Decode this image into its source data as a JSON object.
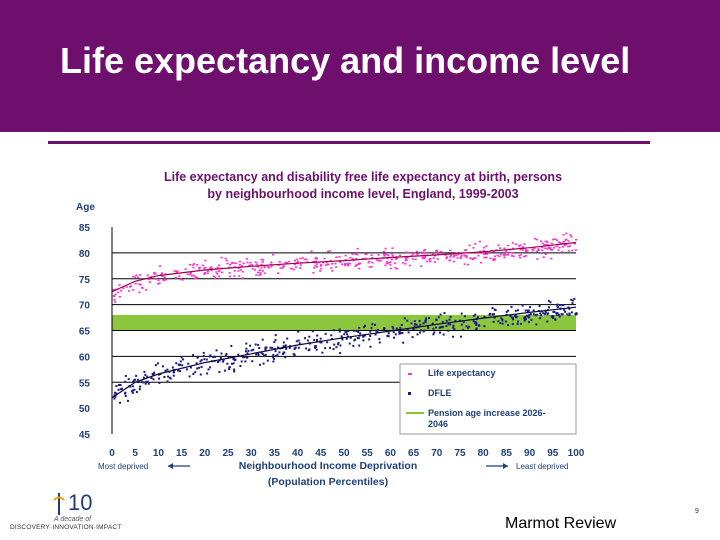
{
  "slide": {
    "title": "Life expectancy and income level",
    "source": "Marmot Review",
    "page_number": "9"
  },
  "logo": {
    "number": "10",
    "line1": "A decade of",
    "line2": "DISCOVERY·INNOVATION·IMPACT"
  },
  "colors": {
    "header_bg": "#6e0f6e",
    "life_expectancy": "#ff33cc",
    "dfle": "#1a1a80",
    "pension": "#8cc63f"
  },
  "chart_data": {
    "type": "scatter",
    "title_lines": [
      "Life expectancy and disability free life expectancy at birth, persons",
      "by neighbourhood income level, England, 1999-2003"
    ],
    "ylabel": "Age",
    "xlabel_lines": [
      "Neighbourhood Income Deprivation",
      "(Population Percentiles)"
    ],
    "x_left_annotation": "Most deprived",
    "x_right_annotation": "Least deprived",
    "xlim": [
      0,
      100
    ],
    "ylim": [
      45,
      85
    ],
    "x_ticks": [
      0,
      5,
      10,
      15,
      20,
      25,
      30,
      35,
      40,
      45,
      50,
      55,
      60,
      65,
      70,
      75,
      80,
      85,
      90,
      95,
      100
    ],
    "y_ticks": [
      45,
      50,
      55,
      60,
      65,
      70,
      75,
      80,
      85
    ],
    "grid_y": [
      55,
      60,
      65,
      70,
      75,
      80
    ],
    "legend_position": "bottom-right",
    "series": [
      {
        "name": "Life expectancy",
        "kind": "points+trend",
        "trend_x": [
          0,
          5,
          10,
          20,
          30,
          40,
          50,
          60,
          70,
          80,
          90,
          100
        ],
        "trend_y": [
          72.5,
          74.5,
          75.6,
          76.7,
          77.4,
          78.0,
          78.5,
          79.1,
          79.6,
          80.2,
          81.0,
          82.0
        ]
      },
      {
        "name": "DFLE",
        "kind": "points+trend",
        "trend_x": [
          0,
          5,
          10,
          20,
          30,
          40,
          50,
          60,
          70,
          80,
          90,
          100
        ],
        "trend_y": [
          52.0,
          55.0,
          56.6,
          58.8,
          60.5,
          62.2,
          63.6,
          64.9,
          66.2,
          67.4,
          68.5,
          69.5
        ]
      },
      {
        "name": "Pension age increase 2026-2046",
        "kind": "band",
        "y_range": [
          65,
          68
        ]
      }
    ]
  }
}
